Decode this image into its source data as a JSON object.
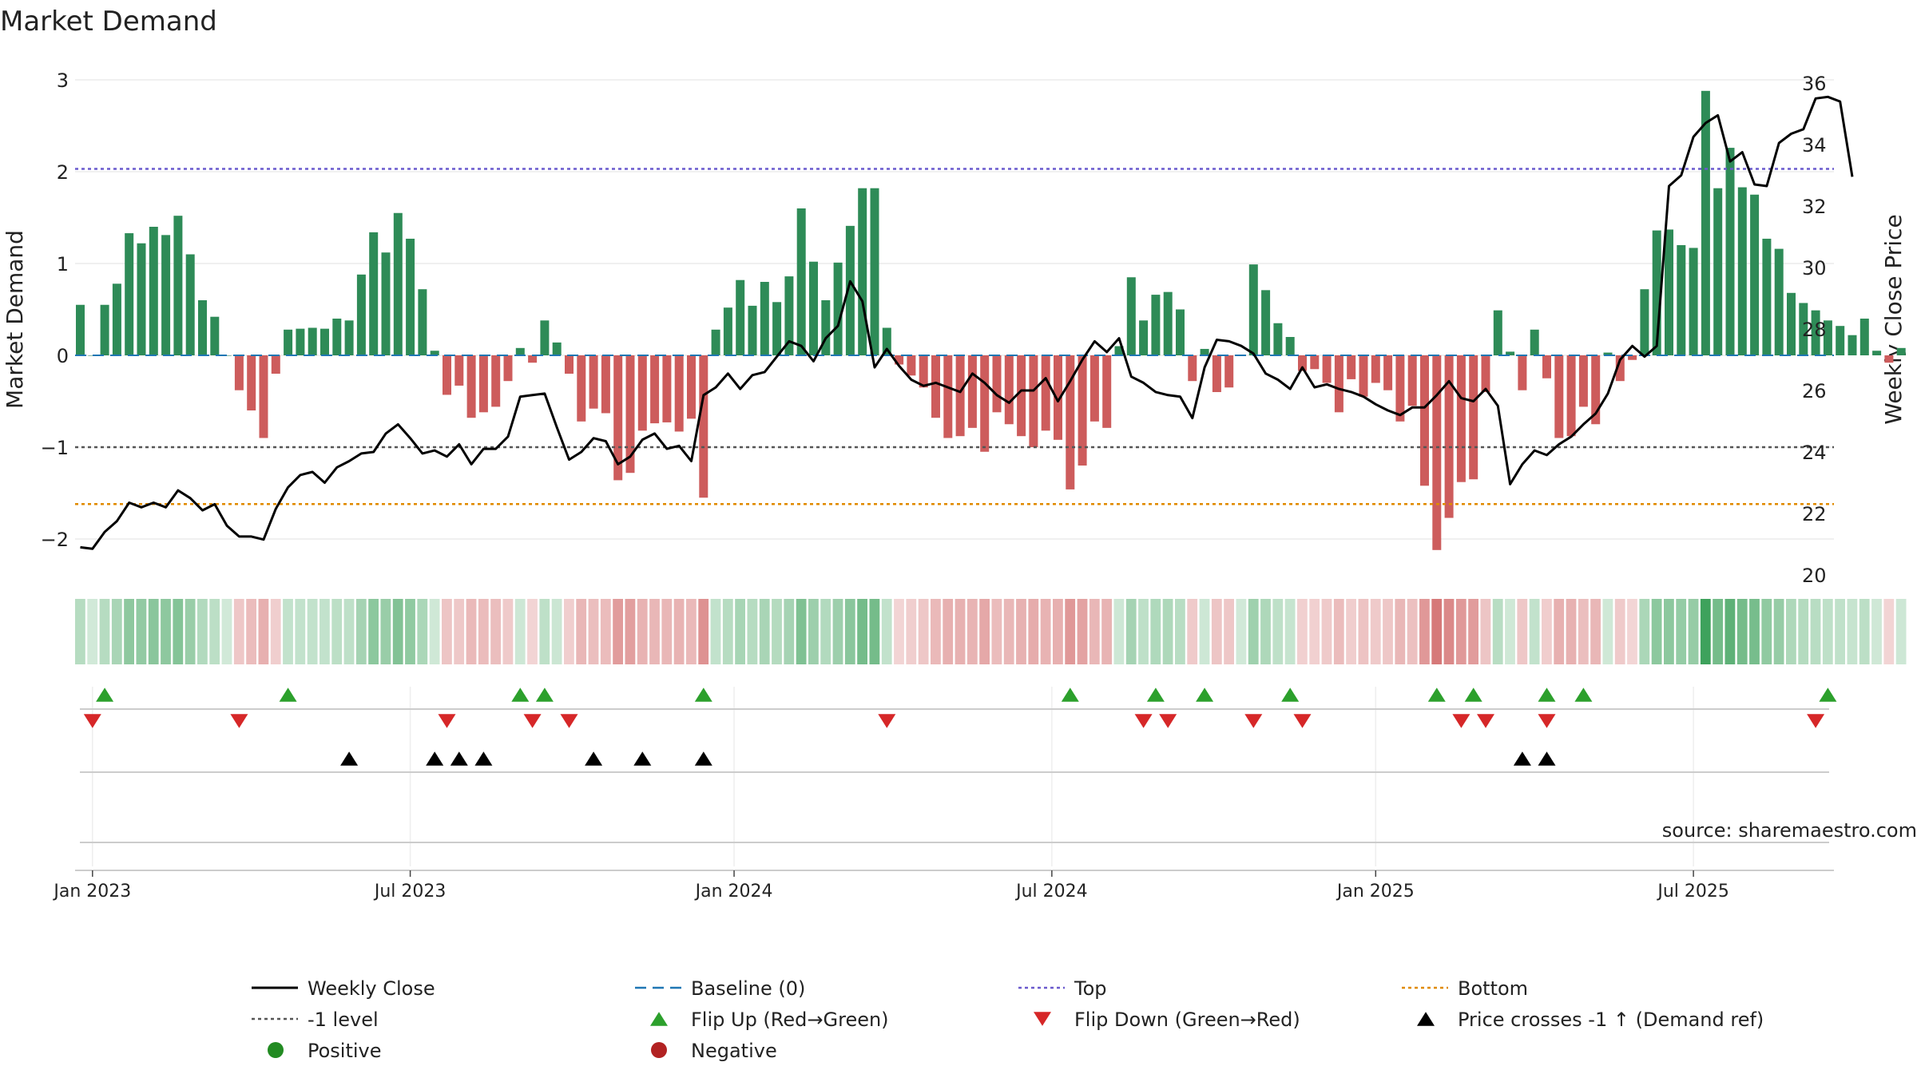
{
  "chart_data": {
    "type": "bar",
    "title": "Market Demand",
    "ylabel": "Market Demand",
    "y2label": "Weekly Close Price",
    "source": "source: sharemaestro.com",
    "ylim": [
      -2.4,
      3.1
    ],
    "y2lim": [
      20,
      36
    ],
    "yticks": [
      {
        "v": 3,
        "label": "3"
      },
      {
        "v": 2,
        "label": "2"
      },
      {
        "v": 1,
        "label": "1"
      },
      {
        "v": 0,
        "label": "0"
      },
      {
        "v": -1,
        "label": "−1"
      },
      {
        "v": -2,
        "label": "−2"
      }
    ],
    "y2ticks": [
      {
        "v": 36,
        "label": "36"
      },
      {
        "v": 34,
        "label": "34"
      },
      {
        "v": 32,
        "label": "32"
      },
      {
        "v": 30,
        "label": "30"
      },
      {
        "v": 28,
        "label": "28"
      },
      {
        "v": 26,
        "label": "26"
      },
      {
        "v": 24,
        "label": "24"
      },
      {
        "v": 22,
        "label": "22"
      },
      {
        "v": 20,
        "label": "20"
      }
    ],
    "xticks": [
      {
        "week": 1,
        "label": "Jan 2023"
      },
      {
        "week": 27,
        "label": "Jul 2023"
      },
      {
        "week": 53.5,
        "label": "Jan 2024"
      },
      {
        "week": 79.5,
        "label": "Jul 2024"
      },
      {
        "week": 106,
        "label": "Jan 2025"
      },
      {
        "week": 132,
        "label": "Jul 2025"
      }
    ],
    "levels": {
      "top": 2.03,
      "minus_one": -1,
      "bottom": -1.62
    },
    "demand": [
      0.55,
      0.0,
      0.55,
      0.78,
      1.33,
      1.22,
      1.4,
      1.31,
      1.52,
      1.1,
      0.6,
      0.42,
      0.0,
      -0.38,
      -0.6,
      -0.9,
      -0.2,
      0.28,
      0.29,
      0.3,
      0.29,
      0.4,
      0.38,
      0.88,
      1.34,
      1.12,
      1.55,
      1.27,
      0.72,
      0.05,
      -0.43,
      -0.33,
      -0.68,
      -0.62,
      -0.56,
      -0.28,
      0.08,
      -0.08,
      0.38,
      0.14,
      -0.2,
      -0.72,
      -0.58,
      -0.63,
      -1.36,
      -1.28,
      -0.82,
      -0.74,
      -0.73,
      -0.83,
      -0.69,
      -1.55,
      0.28,
      0.52,
      0.82,
      0.54,
      0.8,
      0.58,
      0.86,
      1.6,
      1.02,
      0.6,
      1.01,
      1.41,
      1.82,
      1.82,
      0.3,
      -0.1,
      -0.22,
      -0.35,
      -0.68,
      -0.9,
      -0.88,
      -0.79,
      -1.05,
      -0.62,
      -0.75,
      -0.88,
      -1.0,
      -0.82,
      -0.92,
      -1.46,
      -1.2,
      -0.72,
      -0.79,
      0.1,
      0.85,
      0.38,
      0.66,
      0.69,
      0.5,
      -0.28,
      0.07,
      -0.4,
      -0.35,
      0.0,
      0.99,
      0.71,
      0.35,
      0.2,
      -0.17,
      -0.15,
      -0.3,
      -0.62,
      -0.26,
      -0.45,
      -0.3,
      -0.38,
      -0.72,
      -0.55,
      -1.42,
      -2.12,
      -1.77,
      -1.38,
      -1.35,
      -0.4,
      0.49,
      0.04,
      -0.38,
      0.28,
      -0.25,
      -0.9,
      -0.88,
      -0.56,
      -0.75,
      0.03,
      -0.28,
      -0.05,
      0.72,
      1.36,
      1.37,
      1.2,
      1.17,
      2.88,
      1.82,
      2.26,
      1.83,
      1.75,
      1.27,
      1.16,
      0.68,
      0.57,
      0.49,
      0.38,
      0.32,
      0.22,
      0.4,
      0.05,
      -0.08,
      0.08
    ],
    "weekly_close": [
      20.9,
      20.85,
      21.4,
      21.75,
      22.35,
      22.2,
      22.35,
      22.2,
      22.75,
      22.5,
      22.1,
      22.3,
      21.6,
      21.25,
      21.25,
      21.15,
      22.15,
      22.85,
      23.25,
      23.35,
      23.0,
      23.5,
      23.7,
      23.95,
      24.0,
      24.6,
      24.9,
      24.45,
      23.95,
      24.05,
      23.85,
      24.25,
      23.6,
      24.1,
      24.1,
      24.5,
      25.8,
      25.85,
      25.9,
      24.8,
      23.75,
      24.0,
      24.45,
      24.35,
      23.6,
      23.85,
      24.4,
      24.6,
      24.1,
      24.2,
      23.7,
      25.85,
      26.1,
      26.55,
      26.05,
      26.5,
      26.6,
      27.1,
      27.6,
      27.45,
      26.95,
      27.7,
      28.1,
      29.55,
      28.9,
      26.75,
      27.35,
      26.8,
      26.35,
      26.15,
      26.25,
      26.1,
      25.95,
      26.55,
      26.25,
      25.85,
      25.6,
      26.0,
      26.0,
      26.4,
      25.65,
      26.3,
      27.0,
      27.6,
      27.25,
      27.7,
      26.45,
      26.25,
      25.95,
      25.85,
      25.8,
      25.1,
      26.75,
      27.65,
      27.6,
      27.45,
      27.2,
      26.55,
      26.35,
      26.05,
      26.75,
      26.1,
      26.2,
      26.05,
      25.95,
      25.8,
      25.55,
      25.35,
      25.2,
      25.45,
      25.45,
      25.85,
      26.3,
      25.75,
      25.65,
      26.05,
      25.5,
      22.95,
      23.6,
      24.05,
      23.9,
      24.25,
      24.5,
      24.9,
      25.25,
      25.9,
      27.0,
      27.45,
      27.1,
      27.45,
      32.65,
      33.0,
      34.25,
      34.7,
      34.95,
      33.45,
      33.75,
      32.7,
      32.65,
      34.05,
      34.35,
      34.5,
      35.5,
      35.55,
      35.4,
      32.95
    ],
    "flip_up_weeks": [
      2,
      17,
      36,
      38,
      51,
      81,
      88,
      92,
      99,
      111,
      114,
      120,
      123,
      143
    ],
    "flip_down_weeks": [
      1,
      13,
      30,
      37,
      40,
      66,
      87,
      89,
      96,
      100,
      113,
      115,
      120,
      142
    ],
    "price_cross_weeks": [
      22,
      29,
      31,
      33,
      42,
      46,
      51,
      118,
      120
    ],
    "legend": [
      {
        "label": "Weekly Close",
        "marker": "line",
        "color": "#000000"
      },
      {
        "label": "Baseline (0)",
        "marker": "dash",
        "color": "#1f77b4"
      },
      {
        "label": "Top",
        "marker": "dot",
        "color": "#6a5acd"
      },
      {
        "label": "Bottom",
        "marker": "dot",
        "color": "#e08a00"
      },
      {
        "label": "-1 level",
        "marker": "dot",
        "color": "#555555"
      },
      {
        "label": "Flip Up (Red→Green)",
        "marker": "tri-up",
        "color": "#2ca02c"
      },
      {
        "label": "Flip Down (Green→Red)",
        "marker": "tri-down",
        "color": "#d62728"
      },
      {
        "label": "Price crosses -1 ↑ (Demand ref)",
        "marker": "tri-up",
        "color": "#000000"
      },
      {
        "label": "Positive",
        "marker": "circle",
        "color": "#228b22"
      },
      {
        "label": "Negative",
        "marker": "circle",
        "color": "#b22222"
      }
    ],
    "colors": {
      "positive": "#2e8b57",
      "negative": "#cd5c5c",
      "flip_up": "#2ca02c",
      "flip_down": "#d62728",
      "cross": "#000000"
    }
  }
}
